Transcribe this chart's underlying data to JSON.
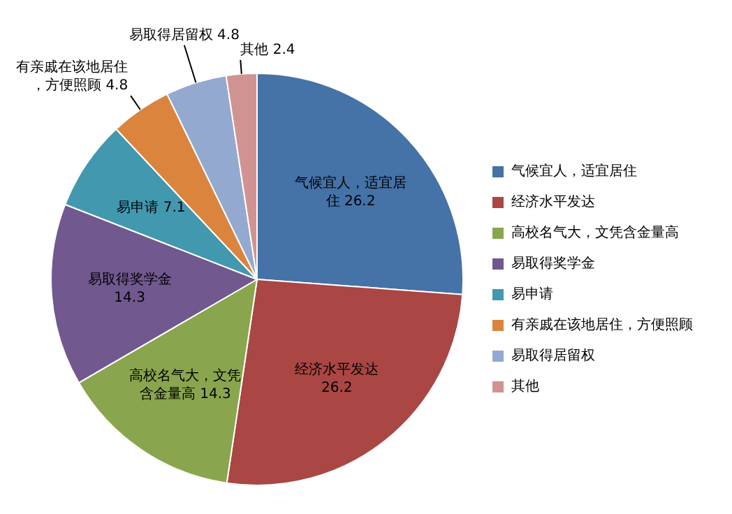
{
  "chart_data": {
    "type": "pie",
    "categories": [
      "气候宜人，适宜居住",
      "经济水平发达",
      "高校名气大，文凭含金量高",
      "易取得奖学金",
      "易申请",
      "有亲戚在该地居住，方便照顾",
      "易取得居留权",
      "其他"
    ],
    "values": [
      26.2,
      26.2,
      14.3,
      14.3,
      7.1,
      4.8,
      4.8,
      2.4
    ],
    "colors": [
      "#4572a7",
      "#aa4643",
      "#89a54e",
      "#71588f",
      "#4198af",
      "#db843d",
      "#93a9cf",
      "#d19392"
    ],
    "data_labels": true,
    "legend": "right"
  }
}
